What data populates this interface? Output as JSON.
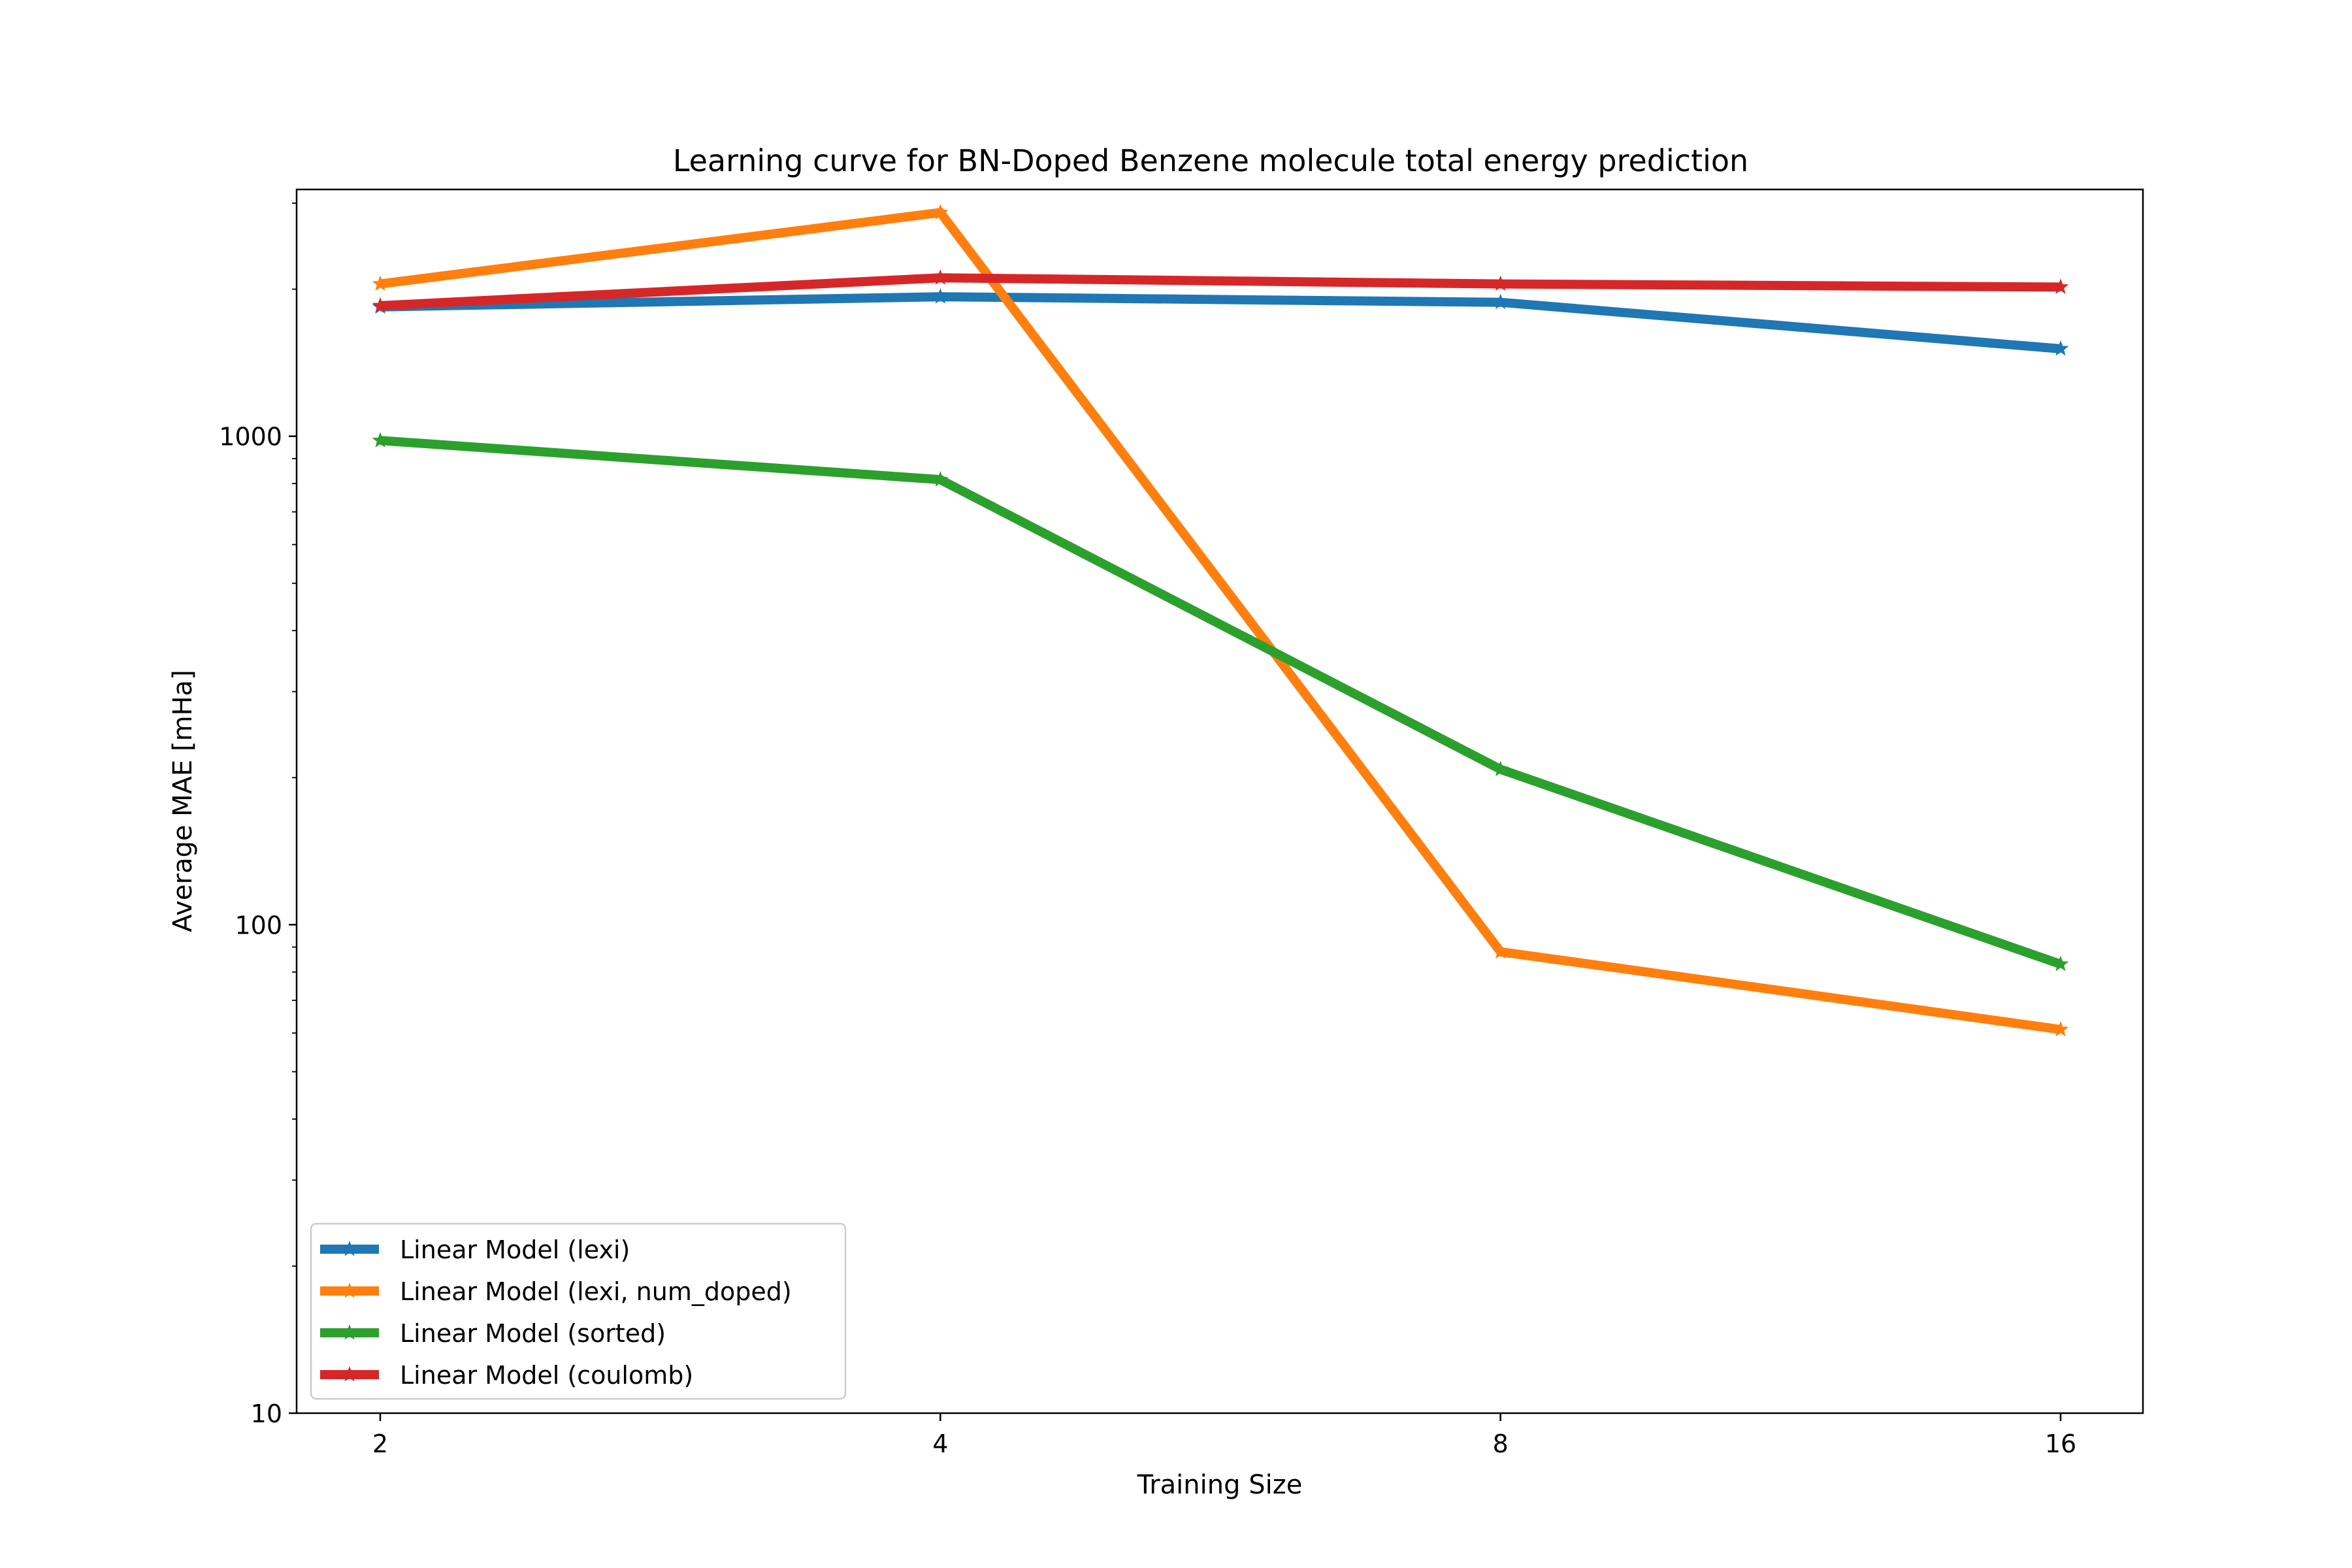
{
  "chart_data": {
    "type": "line",
    "title": "Learning curve for BN-Doped Benzene molecule total energy prediction",
    "xlabel": "Training Size",
    "ylabel": "Average MAE [mHa]",
    "x_scale": "log2",
    "y_scale": "log10",
    "x": [
      2,
      4,
      8,
      16
    ],
    "xticks": [
      "2",
      "4",
      "8",
      "16"
    ],
    "yticks": [
      "10",
      "100",
      "1000"
    ],
    "ylim": [
      10,
      3200
    ],
    "grid": false,
    "legend_position": "lower-left",
    "series": [
      {
        "name": "Linear Model (lexi)",
        "color": "#1f77b4",
        "values": [
          1840,
          1930,
          1880,
          1510
        ]
      },
      {
        "name": "Linear Model (lexi, num_doped)",
        "color": "#ff7f0e",
        "values": [
          2050,
          2870,
          88,
          61
        ]
      },
      {
        "name": "Linear Model (sorted)",
        "color": "#2ca02c",
        "values": [
          980,
          815,
          208,
          83
        ]
      },
      {
        "name": "Linear Model (coulomb)",
        "color": "#d62728",
        "values": [
          1850,
          2110,
          2050,
          2020
        ]
      }
    ]
  }
}
